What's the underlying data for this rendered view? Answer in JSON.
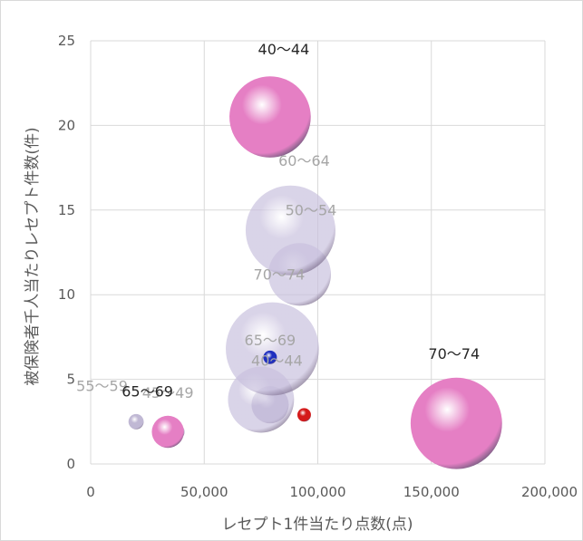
{
  "chart_data": {
    "type": "bubble",
    "xlabel": "レセプト1件当たり点数(点)",
    "ylabel": "被保険者千人当たりレセプト件数(件)",
    "xlim": [
      0,
      200000
    ],
    "ylim": [
      0,
      25
    ],
    "x_ticks": [
      "0",
      "50,000",
      "100,000",
      "150,000",
      "200,000"
    ],
    "y_ticks": [
      "0",
      "5",
      "10",
      "15",
      "20",
      "25"
    ],
    "grid": true,
    "bubbles": [
      {
        "label": "55〜59",
        "x": 20000,
        "y": 2.5,
        "r": 0.9,
        "color": "#b9b0cf",
        "label_style": "light",
        "alpha": 0.9
      },
      {
        "label": "45〜49",
        "x": 38000,
        "y": 1.9,
        "r": 0.9,
        "color": "#b9b0cf",
        "label_style": "light",
        "alpha": 0.9
      },
      {
        "label": "65〜69",
        "x": 34000,
        "y": 1.9,
        "r": 1.9,
        "color": "#e57fc4",
        "label_style": "dark",
        "alpha": 1
      },
      {
        "label": "",
        "x": 79000,
        "y": 3.5,
        "r": 2.2,
        "color": "#b9b0cf",
        "label_style": "none",
        "alpha": 0.9
      },
      {
        "label": "40〜44",
        "x": 75000,
        "y": 3.8,
        "r": 3.9,
        "color": "#c9c1de",
        "label_style": "light",
        "alpha": 0.7
      },
      {
        "label": "65〜69",
        "x": 80000,
        "y": 6.8,
        "r": 5.5,
        "color": "#c9c1de",
        "label_style": "light",
        "alpha": 0.7
      },
      {
        "label": "",
        "x": 79000,
        "y": 6.3,
        "r": 0.8,
        "color": "#1f2fbf",
        "label_style": "none",
        "alpha": 1
      },
      {
        "label": "",
        "x": 94000,
        "y": 2.9,
        "r": 0.8,
        "color": "#d41a1a",
        "label_style": "none",
        "alpha": 1
      },
      {
        "label": "70〜74",
        "x": 92000,
        "y": 11.2,
        "r": 3.7,
        "color": "#c9c1de",
        "label_style": "light",
        "alpha": 0.7
      },
      {
        "label": "50〜54",
        "x": 88000,
        "y": 13.8,
        "r": 5.3,
        "color": "#c9c1de",
        "label_style": "light",
        "alpha": 0.7
      },
      {
        "label": "60〜64",
        "x": 0,
        "y": 0,
        "r": 0,
        "color": "#c9c1de",
        "label_style": "light",
        "alpha": 0
      },
      {
        "label": "40〜44",
        "x": 79000,
        "y": 20.5,
        "r": 4.8,
        "color": "#e57fc4",
        "label_style": "dark",
        "alpha": 1
      },
      {
        "label": "70〜74",
        "x": 161000,
        "y": 2.4,
        "r": 5.4,
        "color": "#e57fc4",
        "label_style": "dark",
        "alpha": 1
      }
    ],
    "label_positions": [
      {
        "label": "55〜59",
        "x": 5000,
        "y": 4.3
      },
      {
        "label": "45〜49",
        "x": 34000,
        "y": 3.9
      },
      {
        "label": "65〜69",
        "x": 25000,
        "y": 4.0
      },
      {
        "label": "",
        "x": 0,
        "y": 0
      },
      {
        "label": "40〜44",
        "x": 82000,
        "y": 5.8
      },
      {
        "label": "65〜69",
        "x": 79000,
        "y": 7.0
      },
      {
        "label": "",
        "x": 0,
        "y": 0
      },
      {
        "label": "",
        "x": 0,
        "y": 0
      },
      {
        "label": "70〜74",
        "x": 83000,
        "y": 10.9
      },
      {
        "label": "50〜54",
        "x": 97000,
        "y": 14.7
      },
      {
        "label": "60〜64",
        "x": 94000,
        "y": 17.6
      },
      {
        "label": "40〜44",
        "x": 85000,
        "y": 24.2
      },
      {
        "label": "70〜74",
        "x": 160000,
        "y": 6.2
      }
    ]
  }
}
